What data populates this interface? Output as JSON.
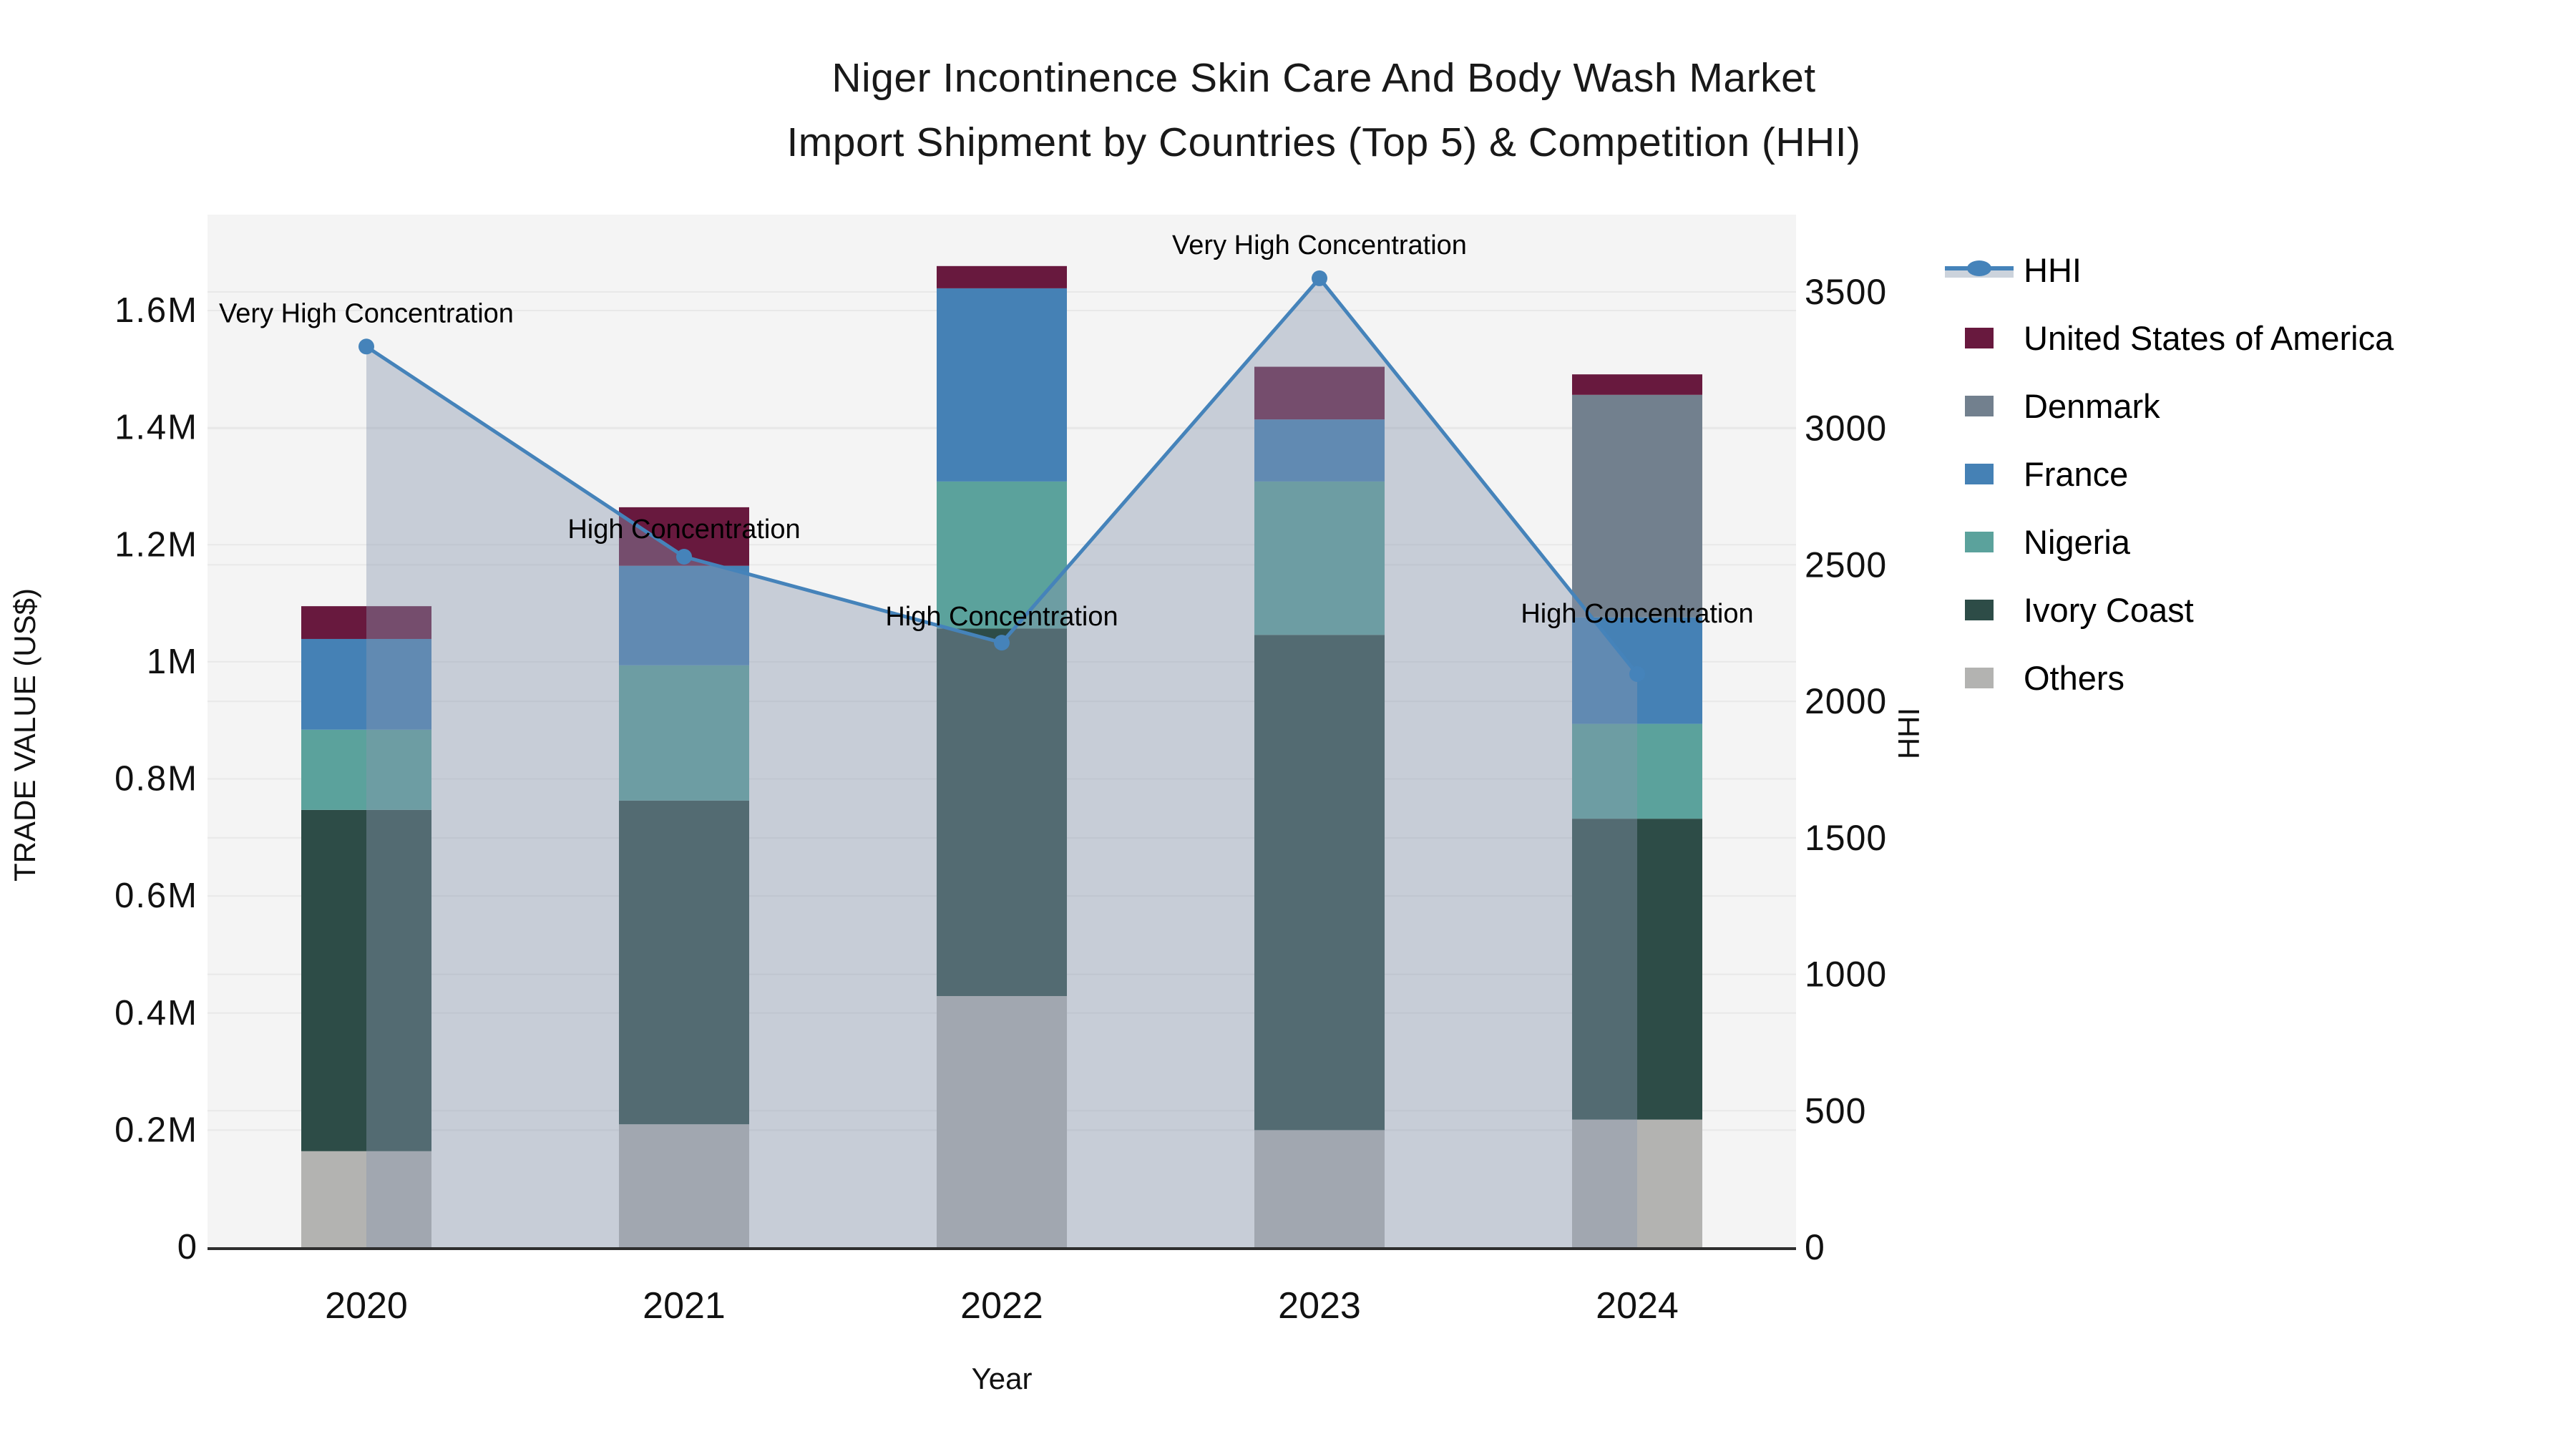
{
  "title": {
    "line1": "Niger Incontinence Skin Care And Body Wash Market",
    "line2": "Import Shipment by Countries (Top 5) & Competition (HHI)"
  },
  "chart_data": {
    "type": "combo-stacked-bar-line",
    "categories": [
      "2020",
      "2021",
      "2022",
      "2023",
      "2024"
    ],
    "xlabel": "Year",
    "bar_axis": {
      "label": "TRADE VALUE (US$)",
      "unit": "million US$",
      "ticks": [
        "0",
        "0.2M",
        "0.4M",
        "0.6M",
        "0.8M",
        "1M",
        "1.2M",
        "1.4M",
        "1.6M"
      ],
      "tick_values": [
        0,
        0.2,
        0.4,
        0.6,
        0.8,
        1.0,
        1.2,
        1.4,
        1.6
      ],
      "max": 1.764
    },
    "line_axis": {
      "label": "HHI",
      "ticks": [
        "0",
        "500",
        "1000",
        "1500",
        "2000",
        "2500",
        "3000",
        "3500"
      ],
      "tick_values": [
        0,
        500,
        1000,
        1500,
        2000,
        2500,
        3000,
        3500
      ],
      "max": 3783
    },
    "series": [
      {
        "name": "Others",
        "color": "#b3b3b1",
        "values": [
          0.164,
          0.21,
          0.429,
          0.2,
          0.218
        ]
      },
      {
        "name": "Ivory Coast",
        "color": "#2d4c47",
        "values": [
          0.583,
          0.553,
          0.628,
          0.846,
          0.514
        ]
      },
      {
        "name": "Nigeria",
        "color": "#5ba29c",
        "values": [
          0.137,
          0.231,
          0.251,
          0.262,
          0.162
        ]
      },
      {
        "name": "France",
        "color": "#4581b5",
        "values": [
          0.155,
          0.17,
          0.33,
          0.106,
          0.182
        ]
      },
      {
        "name": "Denmark",
        "color": "#72808e",
        "values": [
          0,
          0,
          0,
          0,
          0.38
        ]
      },
      {
        "name": "United States of America",
        "color": "#68193e",
        "values": [
          0.056,
          0.1,
          0.038,
          0.09,
          0.035
        ]
      }
    ],
    "line_series": {
      "name": "HHI",
      "color": "#4583ba",
      "area_fill": "rgba(136,150,174,0.42)",
      "values": [
        3300,
        2530,
        2215,
        3550,
        2100
      ]
    },
    "annotations": [
      {
        "category": "2020",
        "text": "Very High Concentration",
        "y_hhi": 3420
      },
      {
        "category": "2021",
        "text": "High Concentration",
        "y_hhi": 2630
      },
      {
        "category": "2022",
        "text": "High Concentration",
        "y_hhi": 2310
      },
      {
        "category": "2023",
        "text": "Very High Concentration",
        "y_hhi": 3670
      },
      {
        "category": "2024",
        "text": "High Concentration",
        "y_hhi": 2320
      }
    ],
    "grid": true,
    "legend_position": "right",
    "plot_bg": "#f4f4f4",
    "grid_color": "#e8e8e8",
    "axis_line_color": "#2e2e2e"
  },
  "legend": {
    "items": [
      {
        "label": "HHI",
        "type": "line",
        "color": "#4583ba",
        "band": "#ccd3dc"
      },
      {
        "label": "United States of America",
        "type": "swatch",
        "color": "#68193e"
      },
      {
        "label": "Denmark",
        "type": "swatch",
        "color": "#72808e"
      },
      {
        "label": "France",
        "type": "swatch",
        "color": "#4581b5"
      },
      {
        "label": "Nigeria",
        "type": "swatch",
        "color": "#5ba29c"
      },
      {
        "label": "Ivory Coast",
        "type": "swatch",
        "color": "#2d4c47"
      },
      {
        "label": "Others",
        "type": "swatch",
        "color": "#b3b3b1"
      }
    ]
  }
}
